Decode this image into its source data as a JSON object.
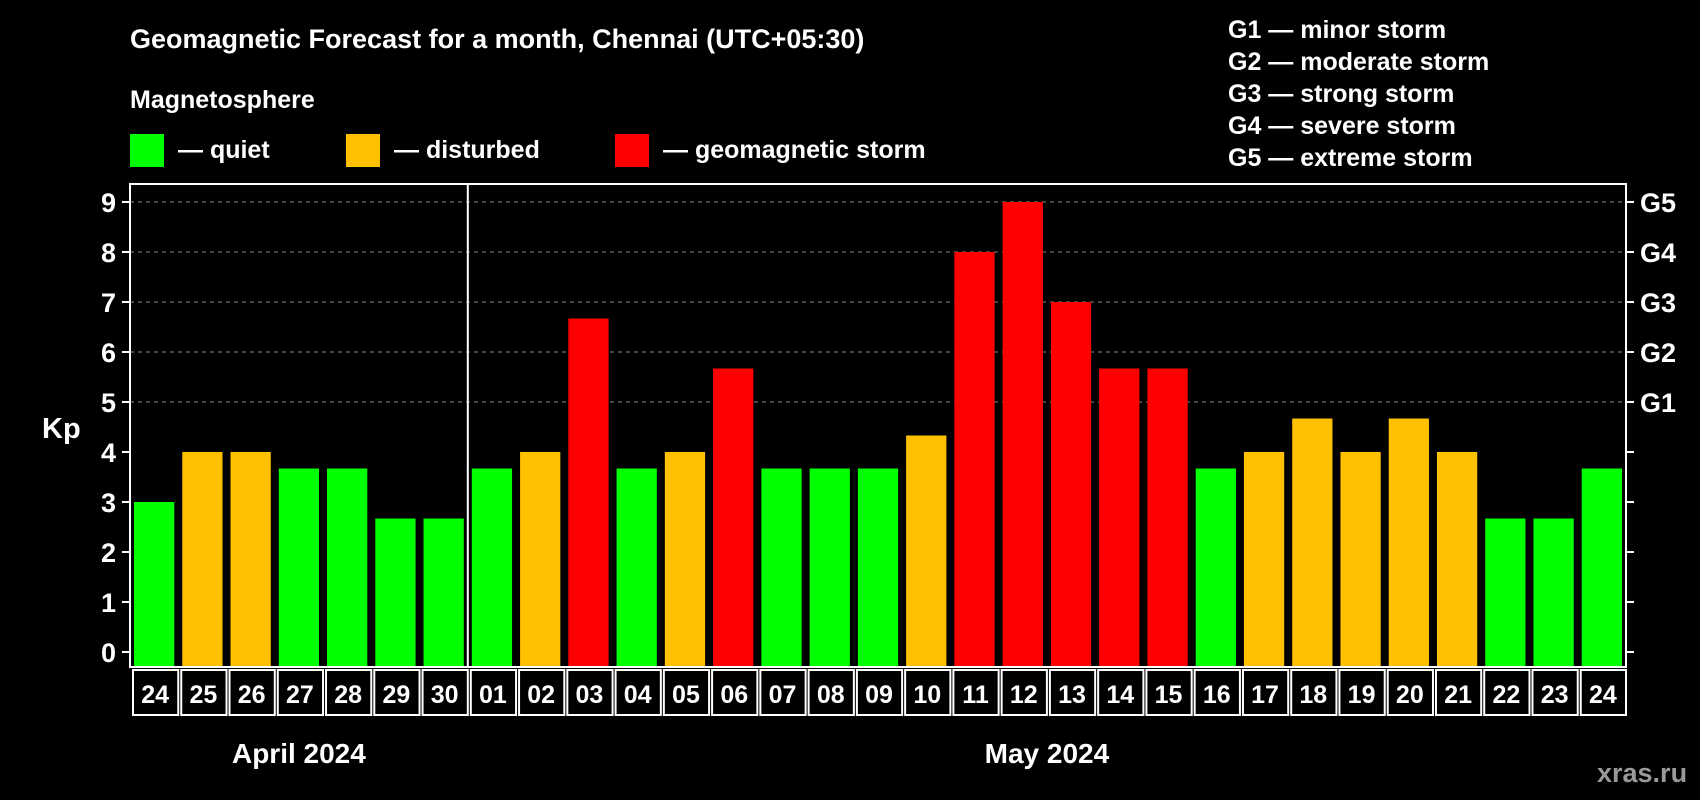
{
  "header": {
    "title": "Geomagnetic Forecast for a month, Chennai (UTC+05:30)",
    "subtitle": "Magnetosphere",
    "legend": [
      {
        "label": "— quiet",
        "color": "#00ff00"
      },
      {
        "label": "— disturbed",
        "color": "#ffc000"
      },
      {
        "label": "— geomagnetic storm",
        "color": "#ff0000"
      }
    ],
    "storm_levels": [
      "G1 — minor storm",
      "G2 — moderate storm",
      "G3 — strong storm",
      "G4 — severe storm",
      "G5 — extreme storm"
    ]
  },
  "brand": "xras.ru",
  "chart_data": {
    "type": "bar",
    "title": "Geomagnetic Forecast for a month, Chennai (UTC+05:30)",
    "ylabel": "Kp",
    "ylim": [
      0,
      9
    ],
    "yticks": [
      "0",
      "1",
      "2",
      "3",
      "4",
      "5",
      "6",
      "7",
      "8",
      "9"
    ],
    "right_ticks": [
      {
        "kp": 5,
        "label": "G1"
      },
      {
        "kp": 6,
        "label": "G2"
      },
      {
        "kp": 7,
        "label": "G3"
      },
      {
        "kp": 8,
        "label": "G4"
      },
      {
        "kp": 9,
        "label": "G5"
      }
    ],
    "grid": "dashed at Kp 5-9",
    "months": [
      {
        "label": "April 2024",
        "start": 0,
        "count": 7
      },
      {
        "label": "May 2024",
        "start": 7,
        "count": 24
      }
    ],
    "categories": [
      "24",
      "25",
      "26",
      "27",
      "28",
      "29",
      "30",
      "01",
      "02",
      "03",
      "04",
      "05",
      "06",
      "07",
      "08",
      "09",
      "10",
      "11",
      "12",
      "13",
      "14",
      "15",
      "16",
      "17",
      "18",
      "19",
      "20",
      "21",
      "22",
      "23",
      "24"
    ],
    "values": [
      3,
      4,
      4,
      3.67,
      3.67,
      2.67,
      2.67,
      3.67,
      4,
      6.67,
      3.67,
      4,
      5.67,
      3.67,
      3.67,
      3.67,
      4.33,
      8,
      9,
      7,
      5.67,
      5.67,
      3.67,
      4,
      4.67,
      4,
      4.67,
      4,
      2.67,
      2.67,
      3.67
    ],
    "status": [
      "quiet",
      "disturbed",
      "disturbed",
      "quiet",
      "quiet",
      "quiet",
      "quiet",
      "quiet",
      "disturbed",
      "storm",
      "quiet",
      "disturbed",
      "storm",
      "quiet",
      "quiet",
      "quiet",
      "disturbed",
      "storm",
      "storm",
      "storm",
      "storm",
      "storm",
      "quiet",
      "disturbed",
      "disturbed",
      "disturbed",
      "disturbed",
      "disturbed",
      "quiet",
      "quiet",
      "quiet"
    ],
    "colors": {
      "quiet": "#00ff00",
      "disturbed": "#ffc000",
      "storm": "#ff0000"
    }
  }
}
